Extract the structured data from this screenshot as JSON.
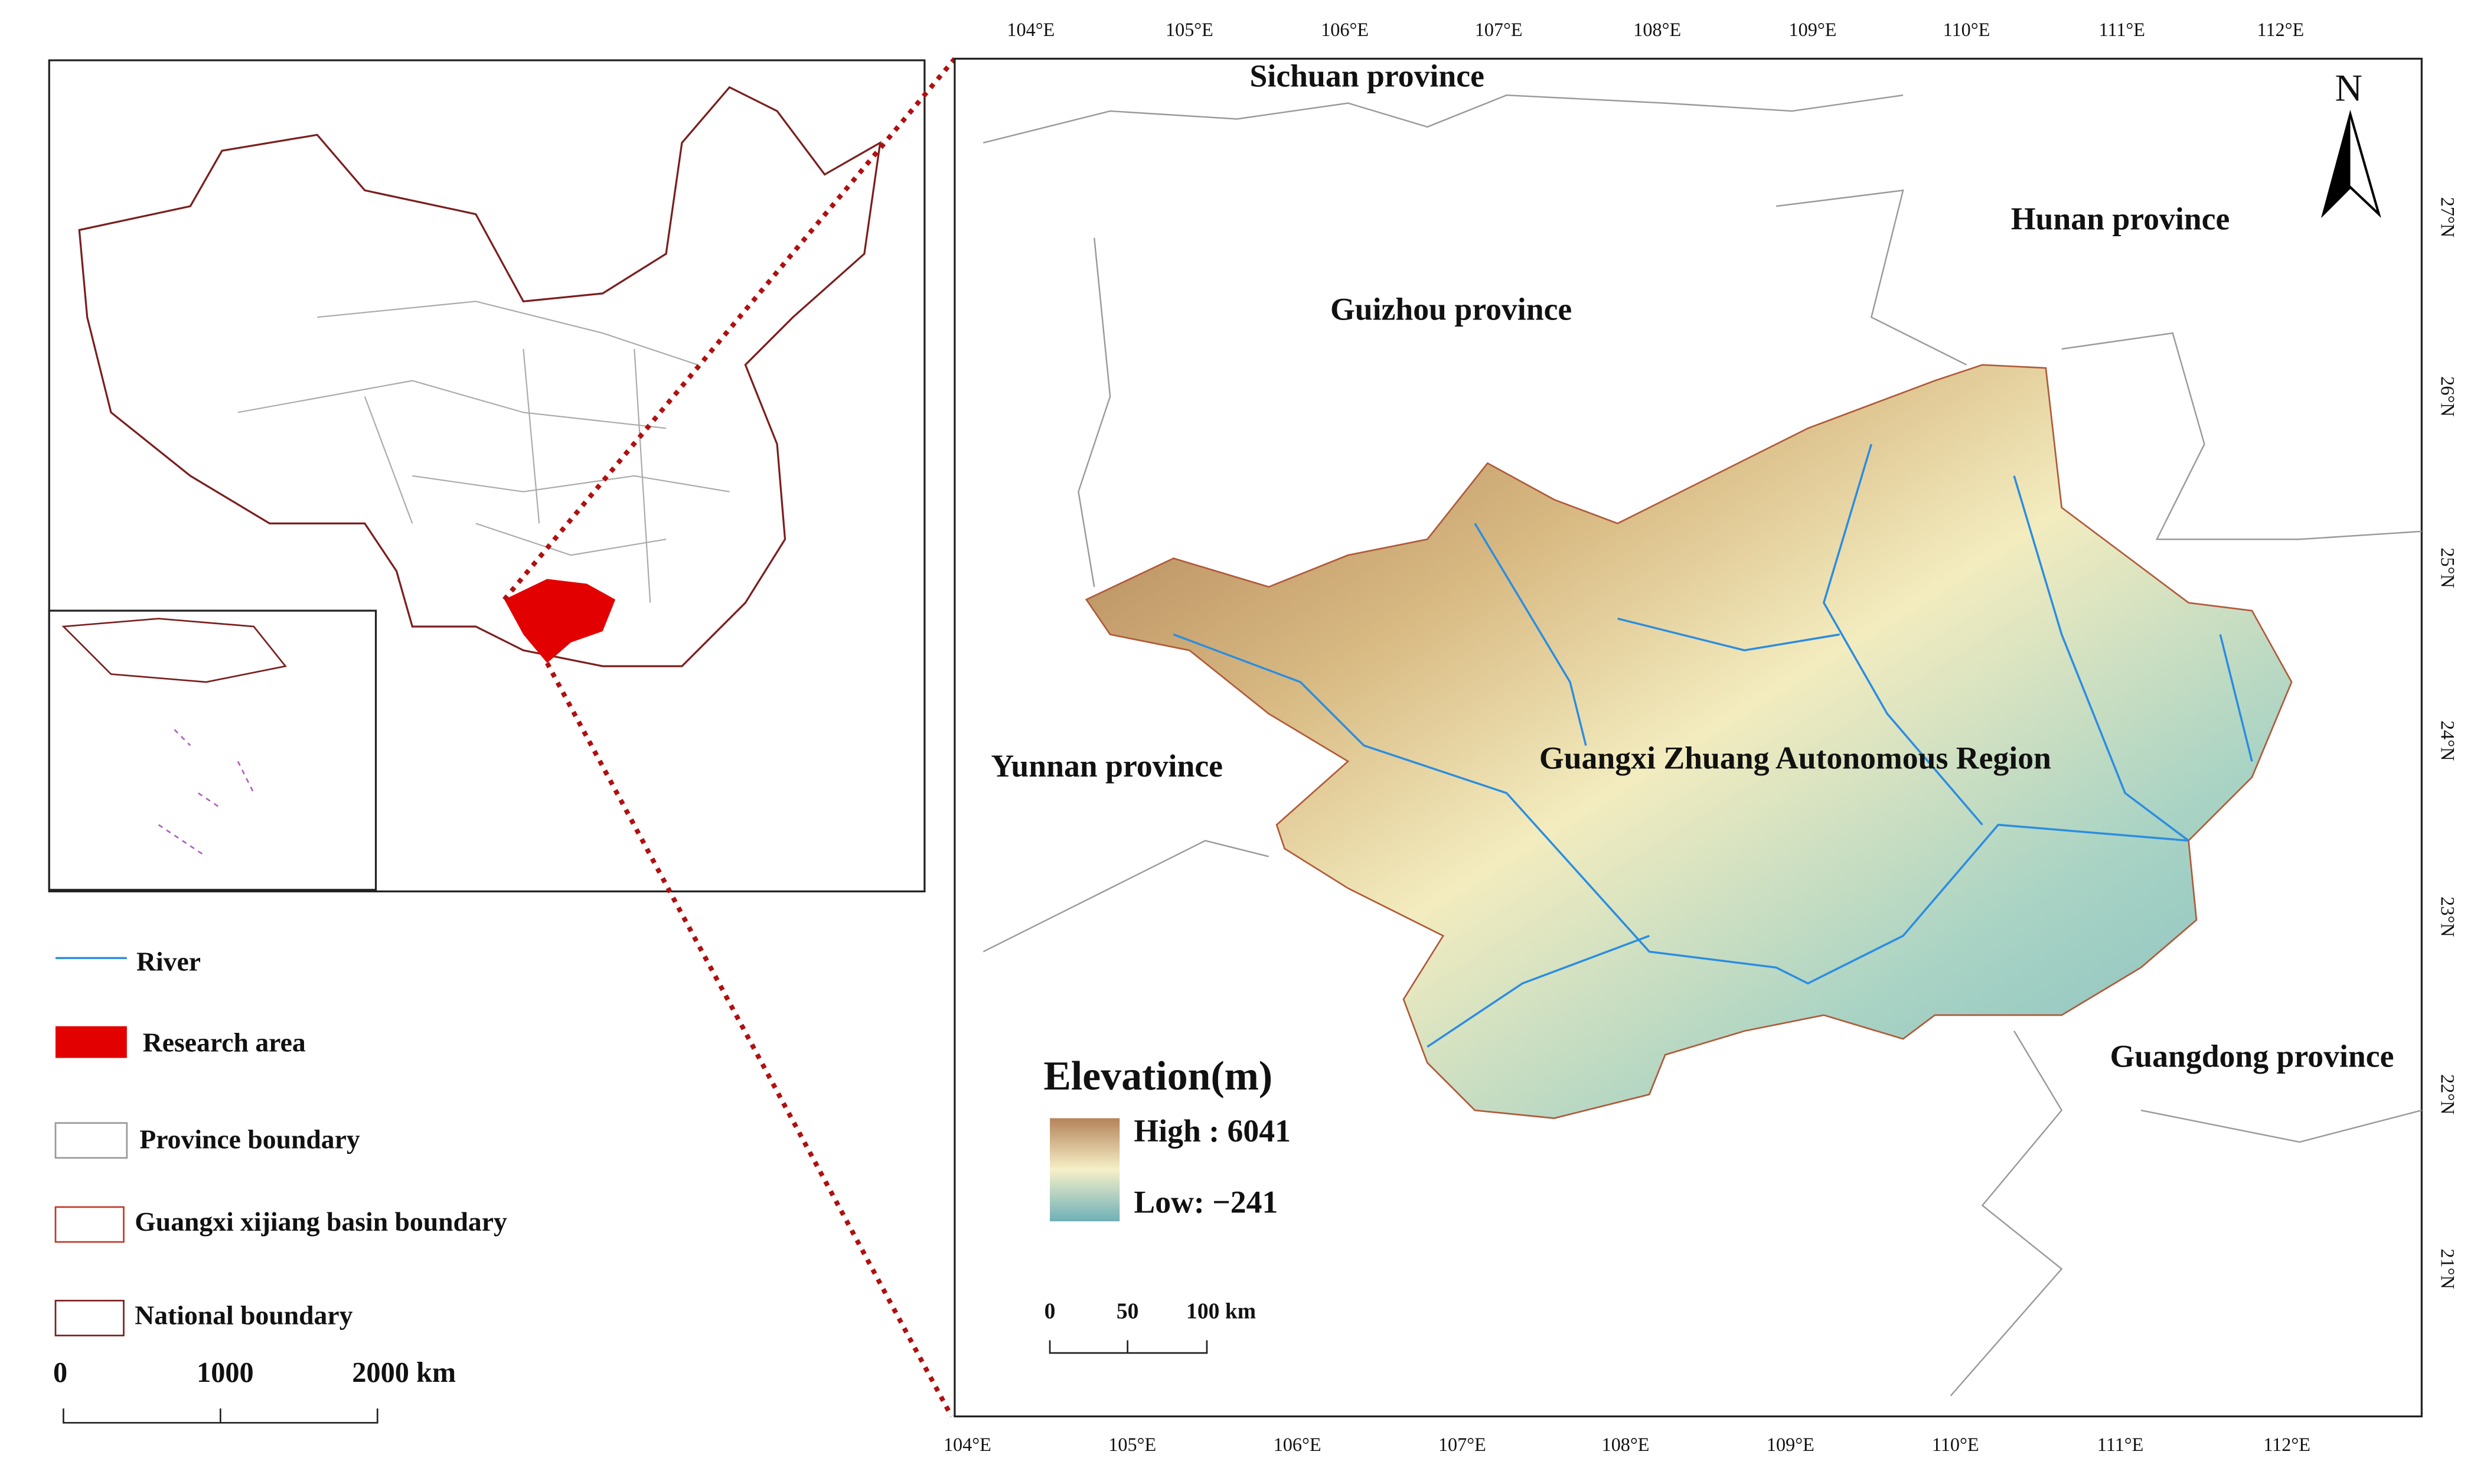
{
  "map_labels": {
    "provinces": [
      "Sichuan province",
      "Guizhou province",
      "Hunan province",
      "Yunnan province",
      "Guangdong province"
    ],
    "region": "Guangxi Zhuang Autonomous Region",
    "north_arrow": "N"
  },
  "axes": {
    "top": [
      "104°E",
      "105°E",
      "106°E",
      "107°E",
      "108°E",
      "109°E",
      "110°E",
      "111°E",
      "112°E"
    ],
    "bottom": [
      "104°E",
      "105°E",
      "106°E",
      "107°E",
      "108°E",
      "109°E",
      "110°E",
      "111°E",
      "112°E"
    ],
    "right": [
      "27°N",
      "26°N",
      "25°N",
      "24°N",
      "23°N",
      "22°N",
      "21°N"
    ]
  },
  "elevation_legend": {
    "title": "Elevation(m)",
    "high": "High : 6041",
    "low": "Low: −241"
  },
  "main_scale_bar": [
    "0",
    "50",
    "100 km"
  ],
  "legend": [
    "River",
    "Research area",
    "Province boundary",
    "Guangxi xijiang basin boundary",
    "National boundary"
  ],
  "inset_scale_bar": [
    "0",
    "1000",
    "2000 km"
  ]
}
